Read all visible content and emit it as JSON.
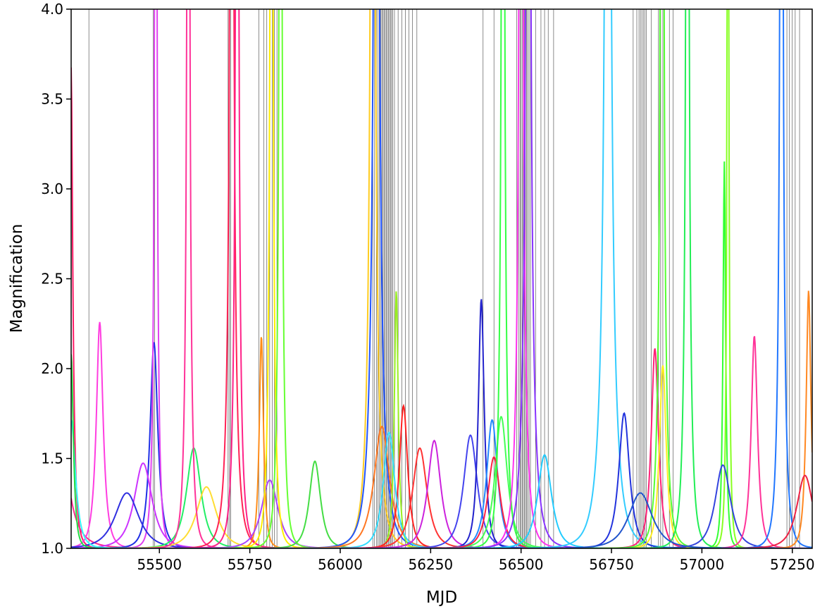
{
  "chart_data": {
    "type": "line",
    "title": "",
    "xlabel": "MJD",
    "ylabel": "Magnification",
    "xlim": [
      55256,
      57305
    ],
    "ylim": [
      1.0,
      4.0
    ],
    "grid": false,
    "legend": "none",
    "x_ticks": [
      55500,
      55750,
      56000,
      56250,
      56500,
      56750,
      57000,
      57250
    ],
    "x_tick_labels": [
      "55500",
      "55750",
      "56000",
      "56250",
      "56500",
      "56750",
      "57000",
      "57250"
    ],
    "y_ticks": [
      1.0,
      1.5,
      2.0,
      2.5,
      3.0,
      3.5,
      4.0
    ],
    "y_tick_labels": [
      "1.0",
      "1.5",
      "2.0",
      "2.5",
      "3.0",
      "3.5",
      "4.0"
    ],
    "vertical_lines": [
      55305,
      55483,
      55487,
      55690,
      55694,
      55697,
      55775,
      55789,
      55797,
      55805,
      55812,
      55818,
      55825,
      56090,
      56095,
      56100,
      56104,
      56108,
      56112,
      56115,
      56118,
      56121,
      56124,
      56127,
      56130,
      56133,
      56136,
      56139,
      56142,
      56145,
      56150,
      56160,
      56170,
      56180,
      56190,
      56200,
      56212,
      56395,
      56425,
      56488,
      56493,
      56497,
      56500,
      56503,
      56506,
      56509,
      56512,
      56515,
      56518,
      56522,
      56526,
      56540,
      56555,
      56565,
      56575,
      56590,
      56810,
      56820,
      56826,
      56830,
      56834,
      56838,
      56842,
      56846,
      56860,
      56880,
      56886,
      56892,
      56910,
      56920,
      57235,
      57242,
      57250,
      57258,
      57270
    ],
    "series": [
      {
        "color": "#ff1a66",
        "t0": 55256,
        "u0": 0.28,
        "tE": 15
      },
      {
        "color": "#ff2a90",
        "t0": 55210,
        "u0": 0.4,
        "tE": 45
      },
      {
        "color": "#ff3de0",
        "t0": 55335,
        "u0": 0.48,
        "tE": 20
      },
      {
        "color": "#1f2ee6",
        "t0": 55485,
        "u0": 0.51,
        "tE": 22
      },
      {
        "color": "#e040f0",
        "t0": 55490,
        "u0": 0.02,
        "tE": 15
      },
      {
        "color": "#cc33ff",
        "t0": 55455,
        "u0": 0.85,
        "tE": 35
      },
      {
        "color": "#3030e0",
        "t0": 55410,
        "u0": 1.05,
        "tE": 40
      },
      {
        "color": "#22ee66",
        "t0": 55595,
        "u0": 0.78,
        "tE": 30
      },
      {
        "color": "#ffdd33",
        "t0": 55630,
        "u0": 1.0,
        "tE": 35
      },
      {
        "color": "#ff3399",
        "t0": 55580,
        "u0": 0.02,
        "tE": 18
      },
      {
        "color": "#ff2255",
        "t0": 55700,
        "u0": 0.01,
        "tE": 25
      },
      {
        "color": "#ff2288",
        "t0": 55715,
        "u0": 0.03,
        "tE": 20
      },
      {
        "color": "#ff8c1a",
        "t0": 55782,
        "u0": 0.5,
        "tE": 12
      },
      {
        "color": "#aa44ff",
        "t0": 55805,
        "u0": 0.95,
        "tE": 30
      },
      {
        "color": "#ffee00",
        "t0": 55810,
        "u0": 0.02,
        "tE": 18
      },
      {
        "color": "#66ff33",
        "t0": 55835,
        "u0": 0.02,
        "tE": 18
      },
      {
        "color": "#44dd44",
        "t0": 55930,
        "u0": 0.84,
        "tE": 22
      },
      {
        "color": "#ffcc22",
        "t0": 56090,
        "u0": 0.02,
        "tE": 30
      },
      {
        "color": "#2255ff",
        "t0": 56100,
        "u0": 0.01,
        "tE": 35
      },
      {
        "color": "#ff7722",
        "t0": 56115,
        "u0": 0.7,
        "tE": 35
      },
      {
        "color": "#99ee22",
        "t0": 56155,
        "u0": 0.44,
        "tE": 12
      },
      {
        "color": "#ff2222",
        "t0": 56175,
        "u0": 0.64,
        "tE": 20
      },
      {
        "color": "#33ddff",
        "t0": 56135,
        "u0": 0.72,
        "tE": 25
      },
      {
        "color": "#ff3333",
        "t0": 56220,
        "u0": 0.78,
        "tE": 30
      },
      {
        "color": "#cc22dd",
        "t0": 56260,
        "u0": 0.75,
        "tE": 28
      },
      {
        "color": "#4444ee",
        "t0": 56360,
        "u0": 0.73,
        "tE": 30
      },
      {
        "color": "#2222cc",
        "t0": 56390,
        "u0": 0.45,
        "tE": 18
      },
      {
        "color": "#2288ff",
        "t0": 56420,
        "u0": 0.68,
        "tE": 25
      },
      {
        "color": "#44ff55",
        "t0": 56445,
        "u0": 0.67,
        "tE": 28
      },
      {
        "color": "#ff2244",
        "t0": 56425,
        "u0": 0.82,
        "tE": 25
      },
      {
        "color": "#33ff44",
        "t0": 56450,
        "u0": 0.02,
        "tE": 20
      },
      {
        "color": "#ff33ee",
        "t0": 56500,
        "u0": 0.02,
        "tE": 25
      },
      {
        "color": "#8833ff",
        "t0": 56520,
        "u0": 0.02,
        "tE": 30
      },
      {
        "color": "#22ccff",
        "t0": 56565,
        "u0": 0.81,
        "tE": 28
      },
      {
        "color": "#33ccff",
        "t0": 56740,
        "u0": 0.02,
        "tE": 40
      },
      {
        "color": "#2233dd",
        "t0": 56785,
        "u0": 0.66,
        "tE": 25
      },
      {
        "color": "#ff2277",
        "t0": 56870,
        "u0": 0.52,
        "tE": 20
      },
      {
        "color": "#ffee22",
        "t0": 56892,
        "u0": 0.55,
        "tE": 18
      },
      {
        "color": "#55ff33",
        "t0": 56890,
        "u0": 0.02,
        "tE": 22
      },
      {
        "color": "#22ee55",
        "t0": 56960,
        "u0": 0.02,
        "tE": 20
      },
      {
        "color": "#33ff33",
        "t0": 57062,
        "u0": 0.33,
        "tE": 10
      },
      {
        "color": "#88ff22",
        "t0": 57072,
        "u0": 0.05,
        "tE": 10
      },
      {
        "color": "#3344dd",
        "t0": 57058,
        "u0": 0.86,
        "tE": 30
      },
      {
        "color": "#ff3399",
        "t0": 57145,
        "u0": 0.5,
        "tE": 18
      },
      {
        "color": "#2277ff",
        "t0": 57220,
        "u0": 0.02,
        "tE": 20
      },
      {
        "color": "#ff8822",
        "t0": 57295,
        "u0": 0.44,
        "tE": 15
      },
      {
        "color": "#ee2244",
        "t0": 57285,
        "u0": 0.92,
        "tE": 30
      },
      {
        "color": "#33ffff",
        "t0": 55256,
        "u0": 0.68,
        "tE": 20
      },
      {
        "color": "#22dd44",
        "t0": 55256,
        "u0": 0.53,
        "tE": 12
      },
      {
        "color": "#2255cc",
        "t0": 56830,
        "u0": 1.05,
        "tE": 40
      }
    ]
  }
}
